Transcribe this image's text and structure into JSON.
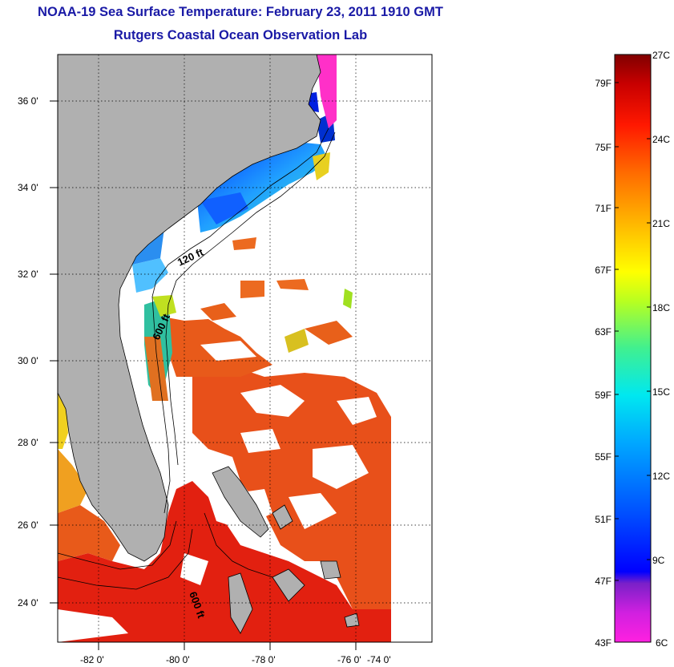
{
  "header": {
    "title": "NOAA-19 Sea Surface Temperature:  February 23, 2011 1910 GMT",
    "subtitle": "Rutgers Coastal Ocean Observation Lab"
  },
  "map": {
    "lon_labels": [
      "-82 0'",
      "-80 0'",
      "-78 0'",
      "-76 0'",
      "-74 0'"
    ],
    "lat_labels": [
      "36 0'",
      "34 0'",
      "32 0'",
      "30 0'",
      "28 0'",
      "26 0'",
      "24 0'"
    ],
    "contour_labels": [
      "120 ft",
      "600 ft",
      "600 ft"
    ],
    "colors": {
      "land": "#b0b0b0",
      "cloud": "#ffffff",
      "gulf_stream": "#e8501a",
      "warm_core": "#e22010",
      "cool_shelf": "#2a6ee8",
      "cold_nearshore": "#ff30c8"
    }
  },
  "colorbar": {
    "fahrenheit": [
      "79F",
      "75F",
      "71F",
      "67F",
      "63F",
      "59F",
      "55F",
      "51F",
      "47F",
      "43F"
    ],
    "celsius": [
      "27C",
      "24C",
      "21C",
      "18C",
      "15C",
      "12C",
      "9C",
      "6C"
    ],
    "stops": [
      "#ff20e0",
      "#7a20c8",
      "#0000ff",
      "#0070ff",
      "#00d8ff",
      "#30f0a0",
      "#b0ff20",
      "#ffff00",
      "#ffb000",
      "#ff6000",
      "#ff1000",
      "#c80000",
      "#800000"
    ]
  }
}
